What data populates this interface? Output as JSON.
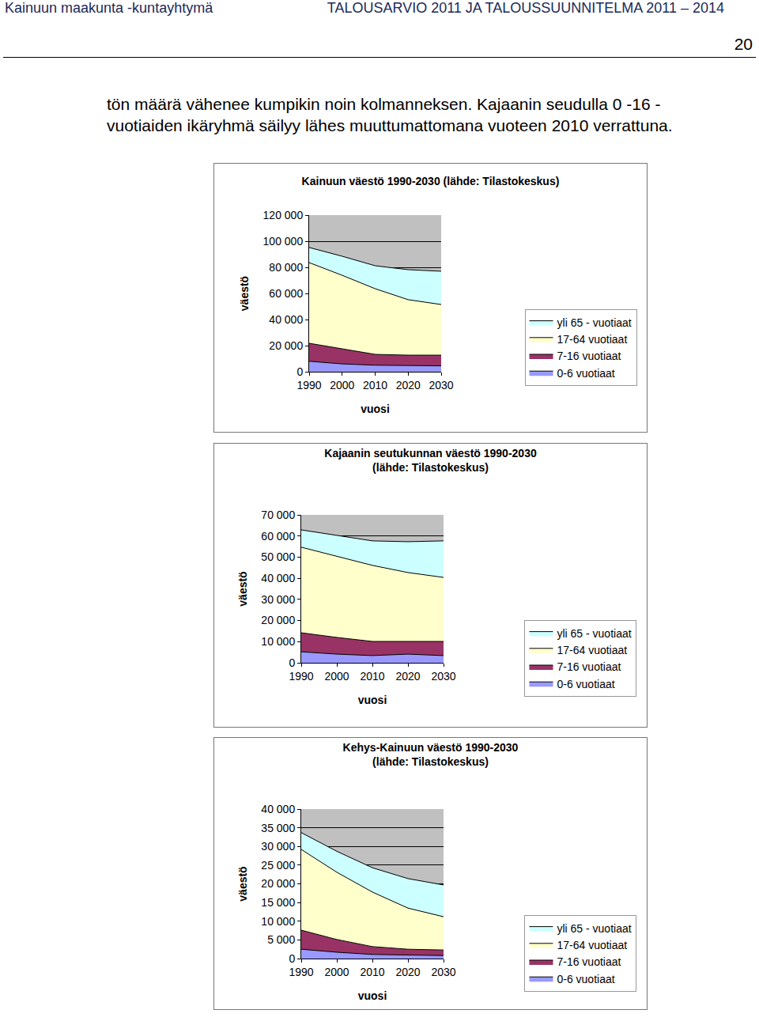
{
  "header": {
    "left": "Kainuun maakunta -kuntayhtymä",
    "right": "TALOUSARVIO 2011 JA TALOUSSUUNNITELMA 2011 – 2014"
  },
  "page_number": 20,
  "text": [
    "tön määrä vähenee kumpikin noin kolmanneksen. Kajaanin seudulla 0 -16 -",
    "vuotiaiden ikäryhmä säilyy lähes muuttumattomana vuoteen 2010 verrattuna."
  ],
  "chart_data": [
    {
      "type": "area",
      "stacked": true,
      "title": "Kainuun väestö 1990-2030 (lähde: Tilastokeskus)",
      "x_label": "vuosi",
      "y_label": "väestö",
      "x": [
        1990,
        2000,
        2010,
        2020,
        2030
      ],
      "xlim": [
        1990,
        2030
      ],
      "xticks": [
        1990,
        2000,
        2010,
        2020,
        2030
      ],
      "ylim": [
        0,
        120000
      ],
      "yticks": [
        0,
        {
          "value": 20000,
          "label": "20 000"
        },
        {
          "value": 40000,
          "label": "40 000"
        },
        {
          "value": 60000,
          "label": "60 000"
        },
        {
          "value": 80000,
          "label": "80 000"
        },
        {
          "value": 100000,
          "label": "100 000"
        },
        {
          "value": 120000,
          "label": "120 000"
        }
      ],
      "grid": true,
      "legend": "right",
      "series": [
        {
          "name": "0-6 vuotiaat",
          "color": "#9999ff",
          "values": [
            8000,
            6000,
            5000,
            4900,
            4500
          ]
        },
        {
          "name": "7-16 vuotiaat",
          "color": "#993366",
          "values": [
            13800,
            11600,
            8300,
            7800,
            8200
          ]
        },
        {
          "name": "17-64 vuotiaat",
          "color": "#ffffcc",
          "values": [
            61800,
            56300,
            50300,
            42500,
            38800
          ]
        },
        {
          "name": "yli 65 - vuotiaat",
          "color": "#ccffff",
          "values": [
            11600,
            14600,
            17600,
            23000,
            25500
          ]
        }
      ]
    },
    {
      "type": "area",
      "stacked": true,
      "title": "Kajaanin seutukunnan väestö 1990-2030\n(lähde: Tilastokeskus)",
      "x_label": "vuosi",
      "y_label": "väestö",
      "x": [
        1990,
        2000,
        2010,
        2020,
        2030
      ],
      "xlim": [
        1990,
        2030
      ],
      "xticks": [
        1990,
        2000,
        2010,
        2020,
        2030
      ],
      "ylim": [
        0,
        70000
      ],
      "yticks": [
        0,
        {
          "value": 10000,
          "label": "10 000"
        },
        {
          "value": 20000,
          "label": "20 000"
        },
        {
          "value": 30000,
          "label": "30 000"
        },
        {
          "value": 40000,
          "label": "40 000"
        },
        {
          "value": 50000,
          "label": "50 000"
        },
        {
          "value": 60000,
          "label": "60 000"
        },
        {
          "value": 70000,
          "label": "70 000"
        }
      ],
      "grid": true,
      "legend": "right",
      "series": [
        {
          "name": "0-6 vuotiaat",
          "color": "#9999ff",
          "values": [
            5200,
            4100,
            3400,
            4100,
            3400
          ]
        },
        {
          "name": "7-16 vuotiaat",
          "color": "#993366",
          "values": [
            9000,
            7900,
            6700,
            6000,
            6700
          ]
        },
        {
          "name": "17-64 vuotiaat",
          "color": "#ffffcc",
          "values": [
            40500,
            38500,
            36000,
            32600,
            30300
          ]
        },
        {
          "name": "yli 65 - vuotiaat",
          "color": "#ccffff",
          "values": [
            8200,
            9800,
            11600,
            14600,
            17300
          ]
        }
      ]
    },
    {
      "type": "area",
      "stacked": true,
      "title": "Kehys-Kainuun väestö 1990-2030\n(lähde: Tilastokeskus)",
      "x_label": "vuosi",
      "y_label": "väestö",
      "x": [
        1990,
        2000,
        2010,
        2020,
        2030
      ],
      "xlim": [
        1990,
        2030
      ],
      "xticks": [
        1990,
        2000,
        2010,
        2020,
        2030
      ],
      "ylim": [
        0,
        40000
      ],
      "yticks": [
        0,
        {
          "value": 5000,
          "label": "5 000"
        },
        {
          "value": 10000,
          "label": "10 000"
        },
        {
          "value": 15000,
          "label": "15 000"
        },
        {
          "value": 20000,
          "label": "20 000"
        },
        {
          "value": 25000,
          "label": "25 000"
        },
        {
          "value": 30000,
          "label": "30 000"
        },
        {
          "value": 35000,
          "label": "35 000"
        },
        {
          "value": 40000,
          "label": "40 000"
        }
      ],
      "grid": true,
      "legend": "right",
      "series": [
        {
          "name": "0-6 vuotiaat",
          "color": "#9999ff",
          "values": [
            2500,
            1700,
            1100,
            900,
            800
          ]
        },
        {
          "name": "7-16 vuotiaat",
          "color": "#993366",
          "values": [
            5100,
            3400,
            2100,
            1600,
            1500
          ]
        },
        {
          "name": "17-64 vuotiaat",
          "color": "#ffffcc",
          "values": [
            21600,
            18000,
            14600,
            11000,
            8900
          ]
        },
        {
          "name": "yli 65 - vuotiaat",
          "color": "#ccffff",
          "values": [
            4500,
            5600,
            6500,
            7900,
            8500
          ]
        }
      ]
    }
  ]
}
